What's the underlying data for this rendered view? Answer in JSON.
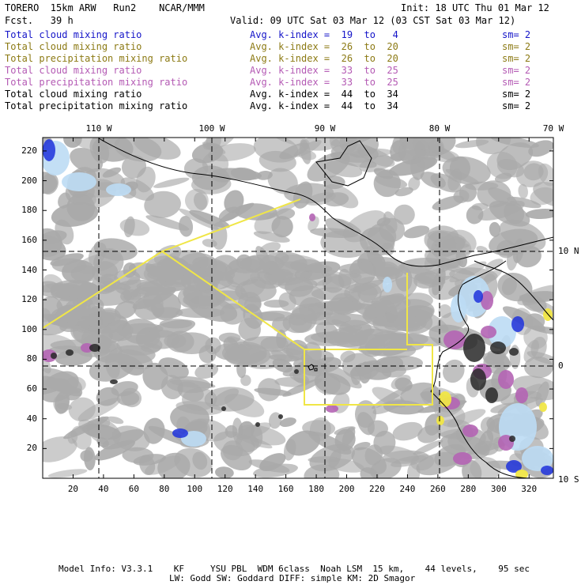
{
  "header": {
    "left_top": "TORERO  15km ARW   Run2    NCAR/MMM",
    "left_bottom": "Fcst.   39 h",
    "init": "Init: 18 UTC Thu 01 Mar 12",
    "valid": "Valid: 09 UTC Sat 03 Mar 12 (03 CST Sat 03 Mar 12)"
  },
  "legend": [
    {
      "name": "Total cloud mixing ratio",
      "avg": "Avg. k-index =  19  to   4",
      "sm": "sm= 2",
      "color": "#1414c8"
    },
    {
      "name": "Total cloud mixing ratio",
      "avg": "Avg. k-index =  26  to  20",
      "sm": "sm= 2",
      "color": "#8c7a14"
    },
    {
      "name": "Total precipitation mixing ratio",
      "avg": "Avg. k-index =  26  to  20",
      "sm": "sm= 2",
      "color": "#8c7a14"
    },
    {
      "name": "Total cloud mixing ratio",
      "avg": "Avg. k-index =  33  to  25",
      "sm": "sm= 2",
      "color": "#b45ab4"
    },
    {
      "name": "Total precipitation mixing ratio",
      "avg": "Avg. k-index =  33  to  25",
      "sm": "sm= 2",
      "color": "#b45ab4"
    },
    {
      "name": "Total cloud mixing ratio",
      "avg": "Avg. k-index =  44  to  34",
      "sm": "sm= 2",
      "color": "#000000"
    },
    {
      "name": "Total precipitation mixing ratio",
      "avg": "Avg. k-index =  44  to  34",
      "sm": "sm= 2",
      "color": "#000000"
    }
  ],
  "map": {
    "lon_labels": [
      "110 W",
      "100 W",
      "90 W",
      "80 W",
      "70 W"
    ],
    "lat_labels": [
      "10 N",
      "0",
      "10 S"
    ],
    "x_ticks": [
      "20",
      "40",
      "60",
      "80",
      "100",
      "120",
      "140",
      "160",
      "180",
      "200",
      "220",
      "240",
      "260",
      "280",
      "300",
      "320"
    ],
    "y_ticks": [
      "220",
      "200",
      "180",
      "160",
      "140",
      "120",
      "100",
      "80",
      "60",
      "40",
      "20"
    ],
    "grid_x_range": [
      0,
      336
    ],
    "grid_y_range": [
      0,
      229
    ],
    "colors": {
      "cloud_gray": "#a9a9a9",
      "dark_core": "#282828",
      "light_blue": "#bcdcf4",
      "blue": "#1e32dc",
      "purple": "#b464b4",
      "yellow": "#f0e646",
      "coast": "#000000",
      "frame": "#000000"
    }
  },
  "footer": {
    "line1": "Model Info: V3.3.1    KF     YSU PBL  WDM 6class  Noah LSM  15 km,    44 levels,    95 sec",
    "line2": "LW: Godd SW: Goddard DIFF: simple KM: 2D Smagor"
  }
}
